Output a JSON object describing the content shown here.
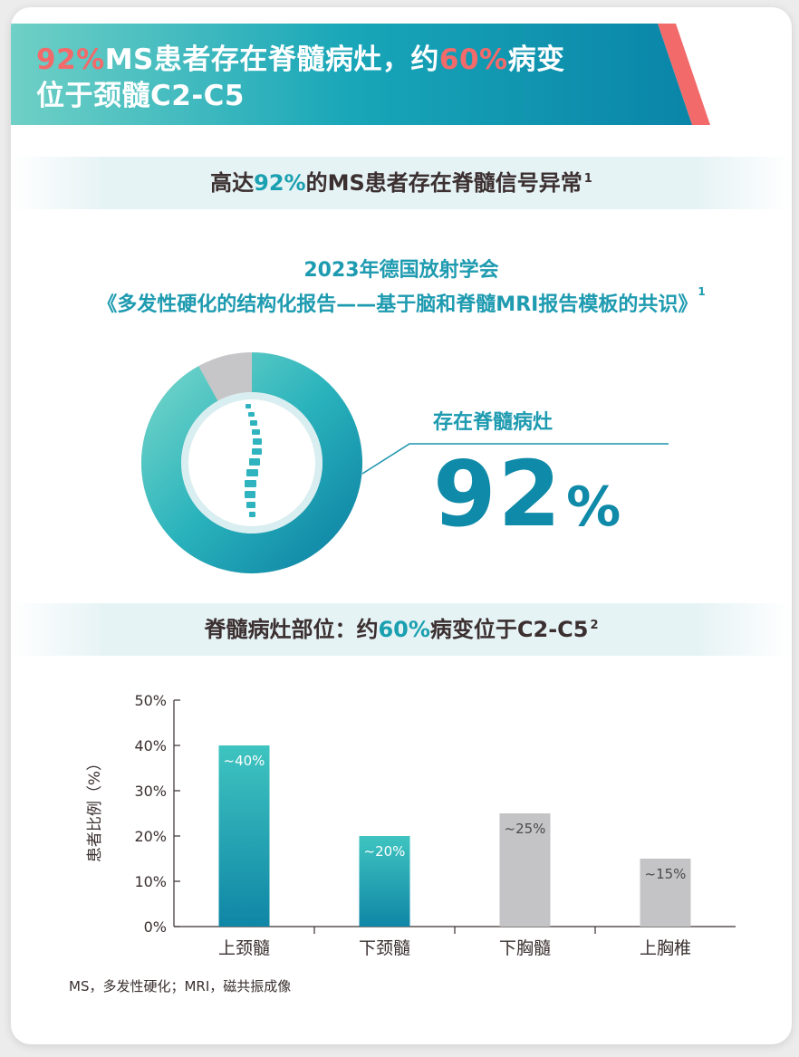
{
  "header": {
    "line1_pct": "92%",
    "line1_mid": "MS患者存在脊髓病灶，约",
    "line1_pct2": "60%",
    "line1_end": "病变",
    "line2": "位于颈髓C2-C5"
  },
  "section1": {
    "title_pre": "高达",
    "title_pct": "92%",
    "title_post": "的MS患者存在脊髓信号异常",
    "title_ref": "1"
  },
  "source": {
    "line1": "2023年德国放射学会",
    "line2": "《多发性硬化的结构化报告——基于脑和脊髓MRI报告模板的共识》",
    "ref": "1"
  },
  "stat": {
    "label": "存在脊髓病灶",
    "value": "92",
    "unit": "%",
    "fraction": 0.92
  },
  "section2": {
    "title_pre": "脊髓病灶部位：约",
    "title_pct": "60%",
    "title_post": "病变位于C2-C5",
    "title_ref": "2"
  },
  "colors": {
    "teal_dark": "#0f86a6",
    "teal_light": "#3cc2c0",
    "gray_bar": "#c4c4c6",
    "accent_red": "#f36a6a"
  },
  "chart_data": {
    "type": "bar",
    "categories": [
      "上颈髓",
      "下颈髓",
      "下胸髓",
      "上胸椎"
    ],
    "values": [
      40,
      20,
      25,
      15
    ],
    "data_labels": [
      "~40%",
      "~20%",
      "~25%",
      "~15%"
    ],
    "highlight": [
      true,
      true,
      false,
      false
    ],
    "ylabel": "患者比例（%）",
    "ylim": [
      0,
      50
    ],
    "yticks": [
      "0%",
      "10%",
      "20%",
      "30%",
      "40%",
      "50%"
    ],
    "grid": false
  },
  "footnote": "MS，多发性硬化；MRI，磁共振成像"
}
